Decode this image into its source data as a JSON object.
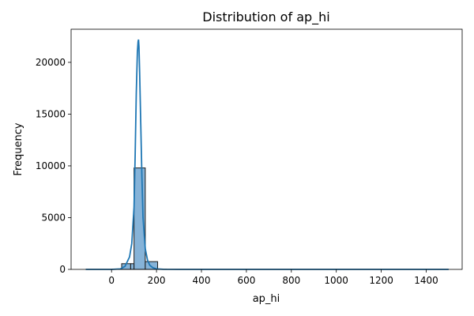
{
  "chart_data": {
    "type": "bar",
    "title": "Distribution of ap_hi",
    "xlabel": "ap_hi",
    "ylabel": "Frequency",
    "xlim": [
      -180,
      1560
    ],
    "ylim": [
      0,
      23200
    ],
    "xticks": [
      0,
      200,
      400,
      600,
      800,
      1000,
      1200,
      1400
    ],
    "yticks": [
      0,
      5000,
      10000,
      15000,
      20000
    ],
    "grid": false,
    "colors": {
      "bar_fill": "#7fafd6",
      "bar_edge": "#1a1a1a",
      "kde": "#1f77b4"
    },
    "bins": [
      {
        "x0": -115,
        "x1": -75,
        "count": 0
      },
      {
        "x0": -75,
        "x1": -35,
        "count": 0
      },
      {
        "x0": -35,
        "x1": 5,
        "count": 0
      },
      {
        "x0": 5,
        "x1": 45,
        "count": 30
      },
      {
        "x0": 45,
        "x1": 85,
        "count": 550
      },
      {
        "x0": 85,
        "x1": 100,
        "count": 550
      },
      {
        "x0": 100,
        "x1": 150,
        "count": 9800
      },
      {
        "x0": 150,
        "x1": 205,
        "count": 750
      },
      {
        "x0": 205,
        "x1": 245,
        "count": 15
      },
      {
        "x0": 245,
        "x1": 1500,
        "count": 0
      }
    ],
    "kde": {
      "x": [
        -115,
        0,
        40,
        60,
        80,
        90,
        100,
        105,
        110,
        115,
        118,
        120,
        122,
        125,
        130,
        135,
        140,
        150,
        160,
        170,
        185,
        200,
        230,
        300,
        500,
        800,
        1100,
        1500
      ],
      "y": [
        0,
        0,
        50,
        300,
        1200,
        2500,
        6000,
        11000,
        17000,
        21000,
        22000,
        22200,
        21500,
        19000,
        14000,
        9000,
        5000,
        2000,
        900,
        400,
        150,
        50,
        10,
        0,
        0,
        0,
        0,
        0
      ]
    }
  }
}
